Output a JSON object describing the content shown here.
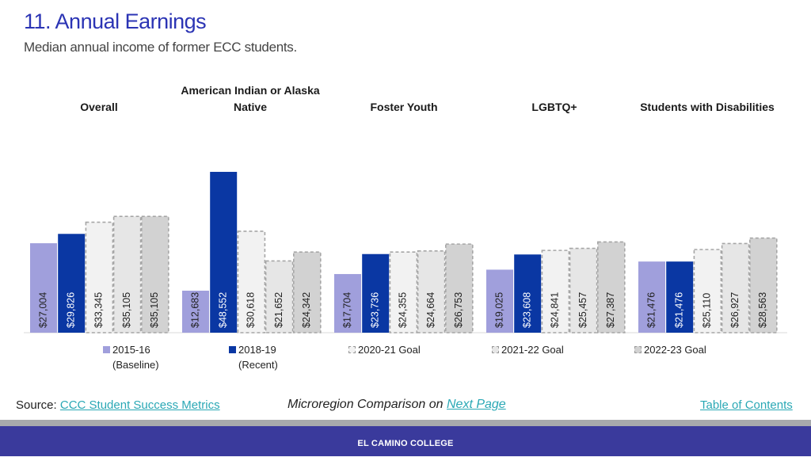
{
  "header": {
    "title": "11. Annual Earnings",
    "subtitle": "Median annual income of former ECC students."
  },
  "chart_data": {
    "type": "bar",
    "title": "11. Annual Earnings",
    "subtitle": "Median annual income of former ECC students.",
    "ylim": [
      0,
      55000
    ],
    "grid": false,
    "legend_position": "bottom",
    "categories": [
      "Overall",
      "American Indian or Alaska Native",
      "Foster Youth",
      "LGBTQ+",
      "Students with Disabilities"
    ],
    "category_lines": [
      [
        "Overall"
      ],
      [
        "American Indian or Alaska",
        "Native"
      ],
      [
        "Foster Youth"
      ],
      [
        "LGBTQ+"
      ],
      [
        "Students with Disabilities"
      ]
    ],
    "series": [
      {
        "name": "2015-16 (Baseline)",
        "legend_lines": [
          "2015-16",
          "(Baseline)"
        ],
        "color": "#a09fdc",
        "style": "solid",
        "text_color": "#222222",
        "values": [
          27004,
          12683,
          17704,
          19025,
          21476
        ],
        "labels": [
          "$27,004",
          "$12,683",
          "$17,704",
          "$19,025",
          "$21,476"
        ]
      },
      {
        "name": "2018-19 (Recent)",
        "legend_lines": [
          "2018-19",
          "(Recent)"
        ],
        "color": "#0a37a3",
        "style": "solid",
        "text_color": "#ffffff",
        "values": [
          29826,
          48552,
          23736,
          23608,
          21476
        ],
        "labels": [
          "$29,826",
          "$48,552",
          "$23,736",
          "$23,608",
          "$21,476"
        ]
      },
      {
        "name": "2020-21 Goal",
        "legend_lines": [
          "2020-21 Goal"
        ],
        "color": "#f2f2f2",
        "style": "dashed",
        "text_color": "#222222",
        "values": [
          33345,
          30618,
          24355,
          24841,
          25110
        ],
        "labels": [
          "$33,345",
          "$30,618",
          "$24,355",
          "$24,841",
          "$25,110"
        ]
      },
      {
        "name": "2021-22 Goal",
        "legend_lines": [
          "2021-22 Goal"
        ],
        "color": "#e6e6e6",
        "style": "dashed",
        "text_color": "#222222",
        "values": [
          35105,
          21652,
          24664,
          25457,
          26927
        ],
        "labels": [
          "$35,105",
          "$21,652",
          "$24,664",
          "$25,457",
          "$26,927"
        ]
      },
      {
        "name": "2022-23 Goal",
        "legend_lines": [
          "2022-23 Goal"
        ],
        "color": "#d2d2d2",
        "style": "dashed",
        "text_color": "#222222",
        "values": [
          35105,
          24342,
          26753,
          27387,
          28563
        ],
        "labels": [
          "$35,105",
          "$24,342",
          "$26,753",
          "$27,387",
          "$28,563"
        ]
      }
    ]
  },
  "footer": {
    "source_prefix": "Source: ",
    "source_link": "CCC Student Success Metrics",
    "compare_text": "Microregion Comparison on ",
    "compare_link": "Next Page",
    "toc_link": "Table of Contents",
    "brand": "EL CAMINO COLLEGE"
  }
}
